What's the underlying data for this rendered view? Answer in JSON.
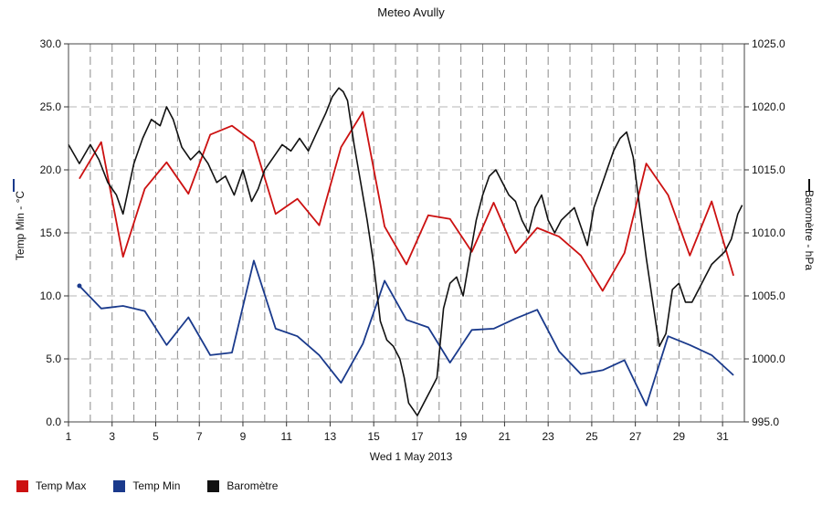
{
  "chart_data": {
    "type": "line",
    "title": "Meteo  Avully",
    "xlabel": "Wed 1 May 2013",
    "ylabel_left": "Temp Min - °C",
    "ylabel_right": "Baromètre - hPa",
    "left_axis": {
      "range": [
        0,
        30
      ],
      "ticks": [
        "0.0",
        "5.0",
        "10.0",
        "15.0",
        "20.0",
        "25.0",
        "30.0"
      ]
    },
    "right_axis": {
      "range": [
        995,
        1025
      ],
      "ticks": [
        "995.0",
        "1000.0",
        "1005.0",
        "1010.0",
        "1015.0",
        "1020.0",
        "1025.0"
      ]
    },
    "x_axis": {
      "range": [
        1,
        32
      ],
      "ticks": [
        "1",
        "3",
        "5",
        "7",
        "9",
        "11",
        "13",
        "15",
        "17",
        "19",
        "21",
        "23",
        "25",
        "27",
        "29",
        "31"
      ]
    },
    "grid": true,
    "legend_position": "bottom-left",
    "series": [
      {
        "name": "Temp Max",
        "color": "#cc1111",
        "axis": "left",
        "x": [
          1.5,
          2.5,
          3.5,
          4.5,
          5.5,
          6.5,
          7.5,
          8.5,
          9.5,
          10.5,
          11.5,
          12.5,
          13.5,
          14.5,
          15.5,
          16.5,
          17.5,
          18.5,
          19.5,
          20.5,
          21.5,
          22.5,
          23.5,
          24.5,
          25.5,
          26.5,
          27.5,
          28.5,
          29.5,
          30.5,
          31.5
        ],
        "y": [
          19.3,
          22.2,
          13.1,
          18.5,
          20.6,
          18.1,
          22.8,
          23.5,
          22.2,
          16.5,
          17.7,
          15.6,
          21.8,
          24.6,
          15.5,
          12.5,
          16.4,
          16.1,
          13.5,
          17.4,
          13.4,
          15.4,
          14.7,
          13.2,
          10.4,
          13.4,
          20.5,
          18.0,
          13.2,
          17.5,
          11.6
        ]
      },
      {
        "name": "Temp Min",
        "color": "#1a3a8c",
        "axis": "left",
        "x": [
          1.5,
          2.5,
          3.5,
          4.5,
          5.5,
          6.5,
          7.5,
          8.5,
          9.5,
          10.5,
          11.5,
          12.5,
          13.5,
          14.5,
          15.5,
          16.5,
          17.5,
          18.5,
          19.5,
          20.5,
          21.5,
          22.5,
          23.5,
          24.5,
          25.5,
          26.5,
          27.5,
          28.5,
          29.5,
          30.5,
          31.5
        ],
        "y": [
          10.8,
          9.0,
          9.2,
          8.8,
          6.1,
          8.3,
          5.3,
          5.5,
          12.8,
          7.4,
          6.8,
          5.3,
          3.1,
          6.2,
          11.2,
          8.1,
          7.5,
          4.7,
          7.3,
          7.4,
          8.2,
          8.9,
          5.6,
          3.8,
          4.1,
          4.9,
          1.3,
          6.8,
          6.1,
          5.3,
          3.7
        ]
      },
      {
        "name": "Baromètre",
        "color": "#111111",
        "axis": "right",
        "x": [
          1.0,
          1.5,
          2.0,
          2.4,
          2.8,
          3.2,
          3.5,
          4.0,
          4.4,
          4.8,
          5.2,
          5.5,
          5.8,
          6.2,
          6.6,
          7.0,
          7.4,
          7.8,
          8.2,
          8.6,
          9.0,
          9.4,
          9.7,
          10.0,
          10.4,
          10.8,
          11.2,
          11.6,
          12.0,
          12.4,
          12.8,
          13.1,
          13.4,
          13.6,
          13.8,
          14.1,
          14.4,
          14.7,
          15.0,
          15.3,
          15.6,
          15.9,
          16.2,
          16.4,
          16.6,
          16.8,
          17.0,
          17.3,
          17.6,
          17.9,
          18.2,
          18.5,
          18.8,
          19.1,
          19.4,
          19.7,
          20.0,
          20.3,
          20.6,
          20.9,
          21.2,
          21.5,
          21.8,
          22.1,
          22.4,
          22.7,
          23.0,
          23.3,
          23.6,
          23.9,
          24.2,
          24.5,
          24.8,
          25.1,
          25.4,
          25.7,
          26.0,
          26.3,
          26.6,
          26.9,
          27.2,
          27.5,
          27.8,
          28.1,
          28.4,
          28.7,
          29.0,
          29.3,
          29.6,
          29.9,
          30.2,
          30.5,
          30.8,
          31.1,
          31.4,
          31.7,
          31.9
        ],
        "y": [
          1017.0,
          1015.5,
          1017.0,
          1015.8,
          1014.0,
          1013.0,
          1011.5,
          1015.5,
          1017.5,
          1019.0,
          1018.5,
          1020.0,
          1019.0,
          1016.8,
          1015.8,
          1016.5,
          1015.5,
          1014.0,
          1014.5,
          1013.0,
          1015.0,
          1012.5,
          1013.5,
          1015.0,
          1016.0,
          1017.0,
          1016.5,
          1017.5,
          1016.5,
          1018.0,
          1019.5,
          1020.8,
          1021.5,
          1021.2,
          1020.5,
          1017.0,
          1014.0,
          1011.0,
          1007.5,
          1003.0,
          1001.5,
          1001.0,
          1000.0,
          998.5,
          996.5,
          996.0,
          995.5,
          996.5,
          997.5,
          998.5,
          1004.0,
          1006.0,
          1006.5,
          1005.0,
          1008.0,
          1011.0,
          1013.0,
          1014.5,
          1015.0,
          1014.0,
          1013.0,
          1012.5,
          1011.0,
          1010.0,
          1012.0,
          1013.0,
          1011.0,
          1010.0,
          1011.0,
          1011.5,
          1012.0,
          1010.5,
          1009.0,
          1012.0,
          1013.5,
          1015.0,
          1016.5,
          1017.5,
          1018.0,
          1016.0,
          1012.0,
          1008.0,
          1004.5,
          1001.0,
          1002.0,
          1005.5,
          1006.0,
          1004.5,
          1004.5,
          1005.5,
          1006.5,
          1007.5,
          1008.0,
          1008.5,
          1009.5,
          1011.5,
          1012.2
        ]
      }
    ]
  }
}
